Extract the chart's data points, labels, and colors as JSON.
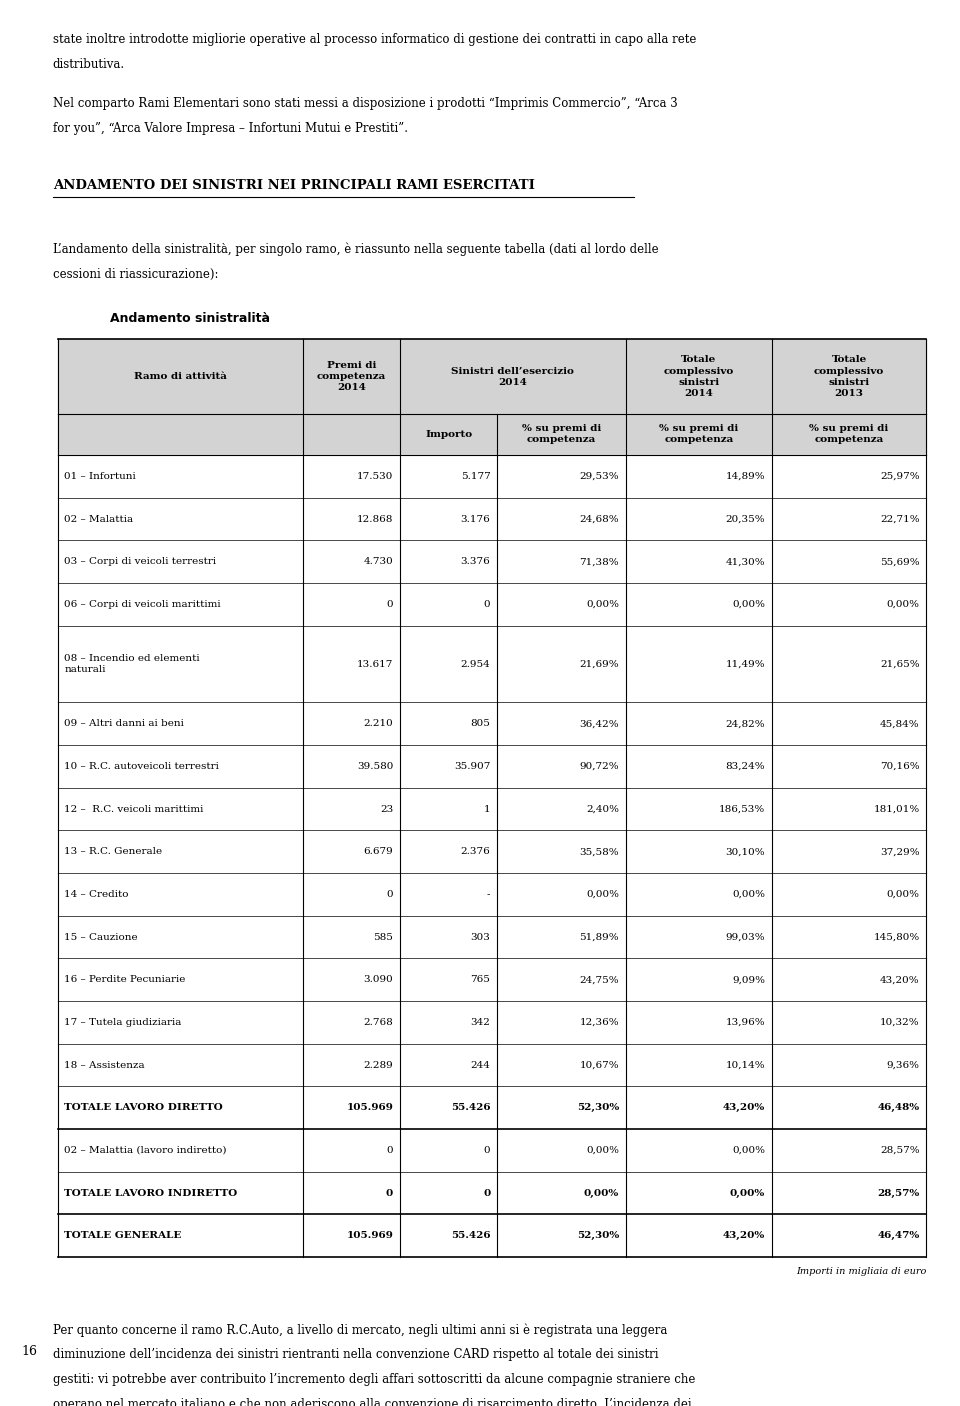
{
  "page_bg": "#ffffff",
  "top_paragraphs": [
    "state inoltre introdotte migliorie operative al processo informatico di gestione dei contratti in capo alla rete",
    "distributiva.",
    "",
    "Nel comparto Rami Elementari sono stati messi a disposizione i prodotti “Imprimis Commercio”, “Arca 3",
    "for you”, “Arca Valore Impresa – Infortuni Mutui e Prestiti”."
  ],
  "section_title": "ANDAMENTO DEI SINISTRI NEI PRINCIPALI RAMI ESERCITATI",
  "body_text": [
    "L’andamento della sinistralità, per singolo ramo, è riassunto nella seguente tabella (dati al lordo delle",
    "cessioni di riassicurazione):"
  ],
  "table_title": "Andamento sinistralità",
  "rows": [
    [
      "01 – Infortuni",
      "17.530",
      "5.177",
      "29,53%",
      "14,89%",
      "25,97%",
      false
    ],
    [
      "02 – Malattia",
      "12.868",
      "3.176",
      "24,68%",
      "20,35%",
      "22,71%",
      false
    ],
    [
      "03 – Corpi di veicoli terrestri",
      "4.730",
      "3.376",
      "71,38%",
      "41,30%",
      "55,69%",
      false
    ],
    [
      "06 – Corpi di veicoli marittimi",
      "0",
      "0",
      "0,00%",
      "0,00%",
      "0,00%",
      false
    ],
    [
      "08 – Incendio ed elementi\nnaturali",
      "13.617",
      "2.954",
      "21,69%",
      "11,49%",
      "21,65%",
      false
    ],
    [
      "09 – Altri danni ai beni",
      "2.210",
      "805",
      "36,42%",
      "24,82%",
      "45,84%",
      false
    ],
    [
      "10 – R.C. autoveicoli terrestri",
      "39.580",
      "35.907",
      "90,72%",
      "83,24%",
      "70,16%",
      false
    ],
    [
      "12 –  R.C. veicoli marittimi",
      "23",
      "1",
      "2,40%",
      "186,53%",
      "181,01%",
      false
    ],
    [
      "13 – R.C. Generale",
      "6.679",
      "2.376",
      "35,58%",
      "30,10%",
      "37,29%",
      false
    ],
    [
      "14 – Credito",
      "0",
      "-",
      "0,00%",
      "0,00%",
      "0,00%",
      false
    ],
    [
      "15 – Cauzione",
      "585",
      "303",
      "51,89%",
      "99,03%",
      "145,80%",
      false
    ],
    [
      "16 – Perdite Pecuniarie",
      "3.090",
      "765",
      "24,75%",
      "9,09%",
      "43,20%",
      false
    ],
    [
      "17 – Tutela giudiziaria",
      "2.768",
      "342",
      "12,36%",
      "13,96%",
      "10,32%",
      false
    ],
    [
      "18 – Assistenza",
      "2.289",
      "244",
      "10,67%",
      "10,14%",
      "9,36%",
      false
    ],
    [
      "TOTALE LAVORO DIRETTO",
      "105.969",
      "55.426",
      "52,30%",
      "43,20%",
      "46,48%",
      true
    ],
    [
      "02 – Malattia (lavoro indiretto)",
      "0",
      "0",
      "0,00%",
      "0,00%",
      "28,57%",
      false
    ],
    [
      "TOTALE LAVORO INDIRETTO",
      "0",
      "0",
      "0,00%",
      "0,00%",
      "28,57%",
      true
    ],
    [
      "TOTALE GENERALE",
      "105.969",
      "55.426",
      "52,30%",
      "43,20%",
      "46,47%",
      true
    ]
  ],
  "footnote": "Importi in migliaia di euro",
  "bottom_paragraphs": [
    "Per quanto concerne il ramo R.C.Auto, a livello di mercato, negli ultimi anni si è registrata una leggera",
    "diminuzione dell’incidenza dei sinistri rientranti nella convenzione CARD rispetto al totale dei sinistri",
    "gestiti: vi potrebbe aver contribuito l’incremento degli affari sottoscritti da alcune compagnie straniere che",
    "operano nel mercato italiano e che non aderiscono alla convenzione di risarcimento diretto. L’incidenza dei"
  ],
  "page_number": "16",
  "text_color": "#000000",
  "header_bg": "#d3d3d3"
}
